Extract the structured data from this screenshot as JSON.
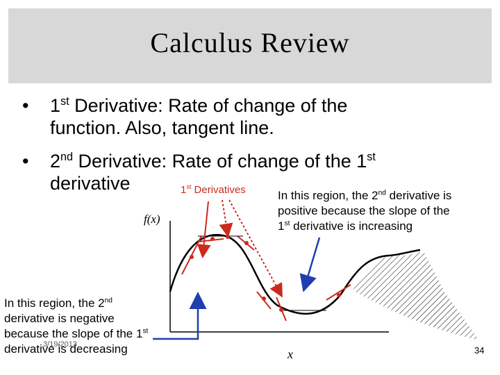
{
  "title": "Calculus Review",
  "bullets": [
    {
      "prefix": "1",
      "sup": "st",
      "text_line1": " Derivative: Rate of change of the",
      "text_line2": "function.  Also, tangent line."
    },
    {
      "prefix": "2",
      "sup": "nd",
      "text_line1": " Derivative: Rate of change of the 1",
      "sup2": "st",
      "text_line2": "derivative"
    }
  ],
  "figure": {
    "derivatives_label": {
      "prefix": "1",
      "sup": "st",
      "text": " Derivatives"
    },
    "fx_label": "f(x)",
    "x_label": "x",
    "note_right": {
      "l1a": "In this region, the 2",
      "l1sup": "nd",
      "l1b": " derivative is",
      "l2": "positive because the slope of the",
      "l3a": "1",
      "l3sup": "st",
      "l3b": " derivative is increasing"
    },
    "note_left": {
      "l1a": "In this region, the 2",
      "l1sup": "nd",
      "l2": "derivative is negative",
      "l3a": "because the slope of the 1",
      "l3sup": "st",
      "l4": "derivative is decreasing"
    },
    "colors": {
      "curve": "#000000",
      "tangent": "#cc2a1d",
      "arrow_red": "#cc2a1d",
      "arrow_blue": "#1f3fb0",
      "title_bg": "#d8d8d8"
    }
  },
  "footer": {
    "date": "3/19/2013",
    "page": "34"
  }
}
